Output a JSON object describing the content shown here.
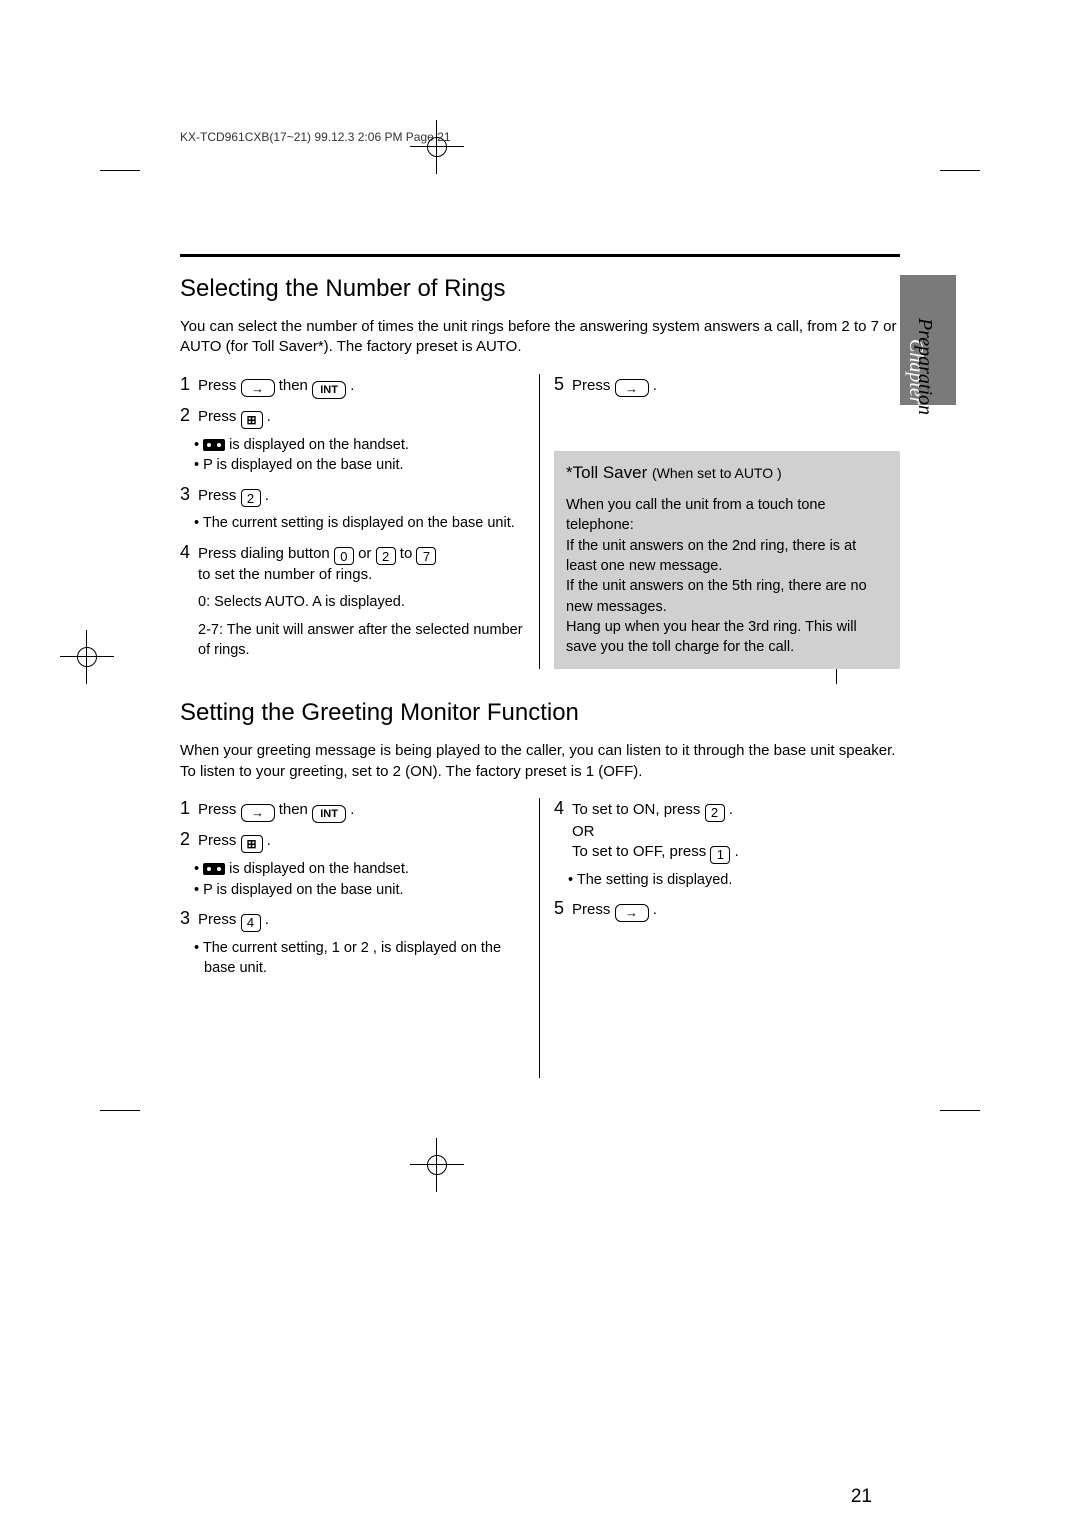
{
  "print_header": "KX-TCD961CXB(17~21)  99.12.3  2:06 PM  Page 21",
  "chapter_tab": "Chapter 1",
  "side_label": "Preparation",
  "page_number": "21",
  "section1": {
    "title": "Selecting the Number of Rings",
    "intro": "You can select the number of times the unit rings before the answering system answers a call, from 2 to 7 or AUTO (for Toll Saver*). The factory preset is AUTO.",
    "steps_left": {
      "s1a": "Press ",
      "s1b": " then ",
      "s1c": " .",
      "s2": "Press ",
      "s2dot": " .",
      "s2_b1": " is displayed on the handset.",
      "s2_b2": "P is displayed on the base unit.",
      "s3": "Press ",
      "s3_key": "2",
      "s3dot": " .",
      "s3_b1": "The current setting is displayed on the base unit.",
      "s4a": "Press dialing button ",
      "s4_k0": "0",
      "s4_or1": " or ",
      "s4_k2": "2",
      "s4_to": " to ",
      "s4_k7": "7",
      "s4b": "to set the number of rings.",
      "s4_d1": "0:   Selects AUTO. A is displayed.",
      "s4_d2": "2-7: The unit will answer after the selected number of rings."
    },
    "steps_right": {
      "s5": "Press ",
      "s5dot": " ."
    },
    "graybox": {
      "title_a": "*Toll Saver",
      "title_b": "(When set to  AUTO )",
      "p1": "When you call the unit from a touch tone telephone:",
      "p2": "If the unit answers on the 2nd ring, there is at least one new message.",
      "p3": "If the unit answers on the 5th ring, there are no new messages.",
      "p4": "Hang up when you hear the 3rd ring. This will save you the toll charge for the call."
    }
  },
  "section2": {
    "title": "Setting the Greeting Monitor Function",
    "intro": "When your greeting message is being played to the caller, you can listen to it through the base unit speaker. To listen to your greeting, set to 2 (ON). The factory preset is 1 (OFF).",
    "left": {
      "s1a": "Press ",
      "s1b": " then ",
      "s1c": " .",
      "s2": "Press ",
      "s2dot": " .",
      "s2_b1": " is displayed on the handset.",
      "s2_b2": "P is displayed on the base unit.",
      "s3": "Press ",
      "s3_key": "4",
      "s3dot": " .",
      "s3_b1": "The current setting,  1  or  2 , is displayed on the base unit."
    },
    "right": {
      "s4a": "To set to ON, press ",
      "s4_k2": "2",
      "s4dot": " .",
      "s4or": "OR",
      "s4b": "To set to OFF, press ",
      "s4_k1": "1",
      "s4bdot": " .",
      "s4_b1": "The setting is displayed.",
      "s5": "Press ",
      "s5dot": " ."
    }
  },
  "icons": {
    "int": "INT"
  },
  "colors": {
    "graybox_bg": "#d0d0d0",
    "tab_bg": "#7a7a7a",
    "text": "#000000",
    "background": "#ffffff"
  }
}
